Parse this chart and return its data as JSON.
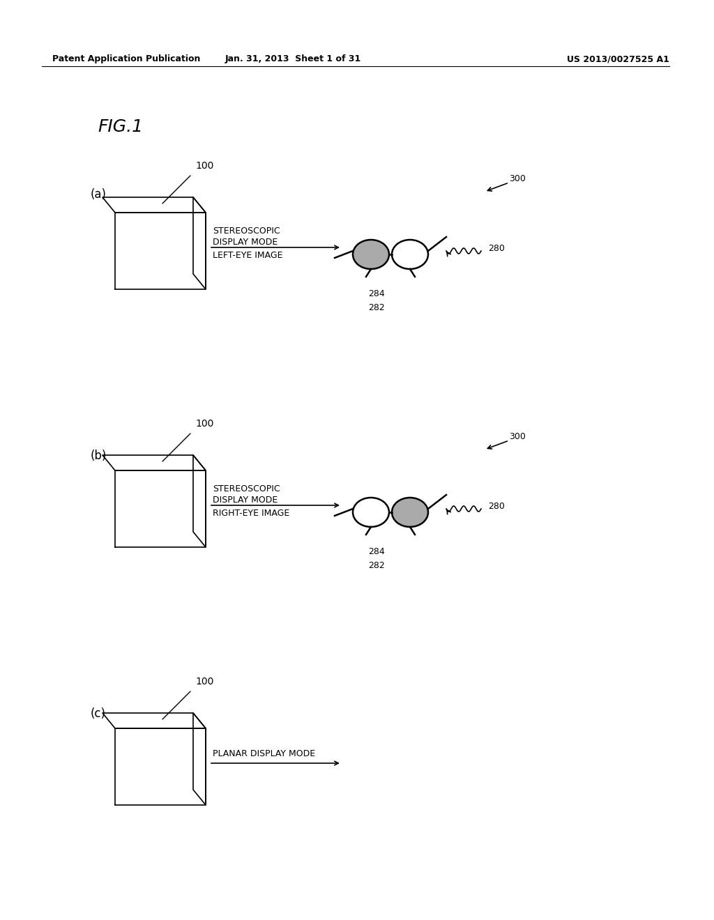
{
  "bg_color": "#ffffff",
  "header_left": "Patent Application Publication",
  "header_center": "Jan. 31, 2013  Sheet 1 of 31",
  "header_right": "US 2013/0027525 A1",
  "fig_title": "FIG.1",
  "panels": [
    {
      "label": "(a)",
      "display_label": "100",
      "mode_text": "STEREOSCOPIC\nDISPLAY MODE",
      "image_text": "LEFT-EYE IMAGE",
      "glasses_shaded_left": true,
      "show_glasses": true,
      "label_280": "280",
      "label_300": "300",
      "label_282": "282",
      "label_284": "284"
    },
    {
      "label": "(b)",
      "display_label": "100",
      "mode_text": "STEREOSCOPIC\nDISPLAY MODE",
      "image_text": "RIGHT-EYE IMAGE",
      "glasses_shaded_left": false,
      "show_glasses": true,
      "label_280": "280",
      "label_300": "300",
      "label_282": "282",
      "label_284": "284"
    },
    {
      "label": "(c)",
      "display_label": "100",
      "mode_text": "PLANAR DISPLAY MODE",
      "image_text": "",
      "show_glasses": false,
      "label_280": "",
      "label_300": "",
      "label_282": "",
      "label_284": ""
    }
  ]
}
